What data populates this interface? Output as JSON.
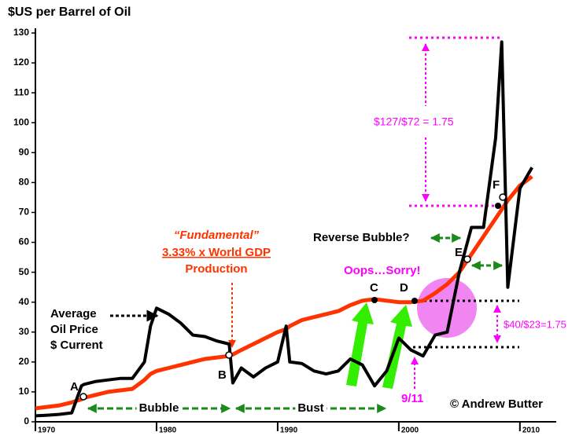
{
  "chart_data": {
    "type": "line",
    "title": "$US per Barrel of Oil",
    "x": [
      1970,
      1971,
      1972,
      1973,
      1973.8,
      1974,
      1975,
      1976,
      1977,
      1978,
      1979,
      1979.5,
      1980,
      1981,
      1982,
      1983,
      1984,
      1985,
      1986,
      1986.3,
      1987,
      1988,
      1989,
      1990,
      1990.7,
      1991,
      1992,
      1993,
      1994,
      1995,
      1996,
      1997,
      1998,
      1999,
      2000,
      2001,
      2002,
      2003,
      2004,
      2005,
      2006,
      2007,
      2008,
      2008.5,
      2009,
      2010,
      2011
    ],
    "series": [
      {
        "color": "#000000",
        "values": [
          2,
          2.2,
          2.5,
          3,
          12,
          12.5,
          13.5,
          14,
          14.5,
          14.5,
          20,
          32,
          38,
          36,
          33,
          29,
          28.5,
          27,
          26,
          13,
          18,
          15,
          18,
          20,
          32,
          20,
          19.5,
          17,
          16,
          17,
          21,
          19,
          12,
          17,
          28,
          24,
          22,
          29,
          30,
          50,
          65,
          65,
          95,
          127,
          45,
          78,
          85
        ]
      },
      {
        "color": "#ff3300",
        "values": [
          4.5,
          5,
          5.5,
          6.5,
          7.5,
          8,
          9,
          10,
          10.5,
          11,
          14,
          16,
          17,
          18,
          19,
          20,
          21,
          21.5,
          22,
          22.5,
          24,
          26,
          28,
          30,
          31,
          32,
          34,
          35,
          36,
          37,
          39,
          40.5,
          41,
          40.5,
          40,
          40,
          40.5,
          43,
          46,
          50,
          56,
          62,
          68,
          71,
          74,
          79,
          82
        ]
      }
    ],
    "xlim": [
      1970,
      2013
    ],
    "xticks": [
      1970,
      1980,
      1990,
      2000,
      2010
    ],
    "ylim": [
      0,
      130
    ],
    "yticks": [
      0,
      10,
      20,
      30,
      40,
      50,
      60,
      70,
      80,
      90,
      100,
      110,
      120,
      130
    ],
    "annotations": [
      "A",
      "B",
      "C",
      "D",
      "E",
      "F",
      "Average",
      "Oil Price",
      "$ Current",
      "“Fundamental”",
      "3.33% x World GDP",
      "Production",
      "Reverse Bubble?",
      "Oops…Sorry!",
      "$127/$72 = 1.75",
      "$40/$23=1.75",
      "9/11",
      "Bubble",
      "Bust",
      "© Andrew Butter"
    ]
  }
}
